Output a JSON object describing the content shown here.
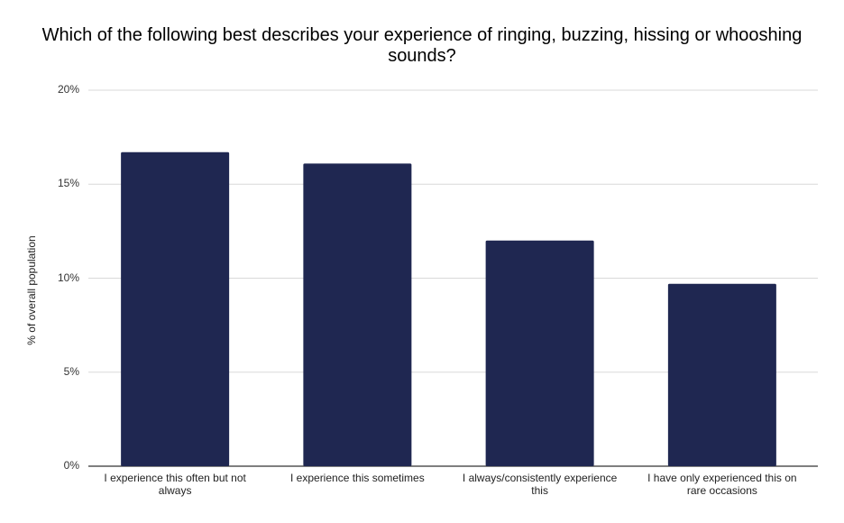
{
  "chart_data": {
    "type": "bar",
    "title": "Which of the following best describes your experience of ringing, buzzing, hissing or whooshing sounds?",
    "ylabel": "% of overall population",
    "xlabel": "",
    "ylim": [
      0,
      20
    ],
    "yticks": [
      "0%",
      "5%",
      "10%",
      "15%",
      "20%"
    ],
    "ytick_values": [
      0,
      5,
      10,
      15,
      20
    ],
    "categories": [
      "I experience this often but not always",
      "I experience this sometimes",
      "I always/consistently experience this",
      "I have only experienced this on rare occasions"
    ],
    "values": [
      16.7,
      16.1,
      12.0,
      9.7
    ],
    "grid": true,
    "bar_color": "#1f2751"
  }
}
